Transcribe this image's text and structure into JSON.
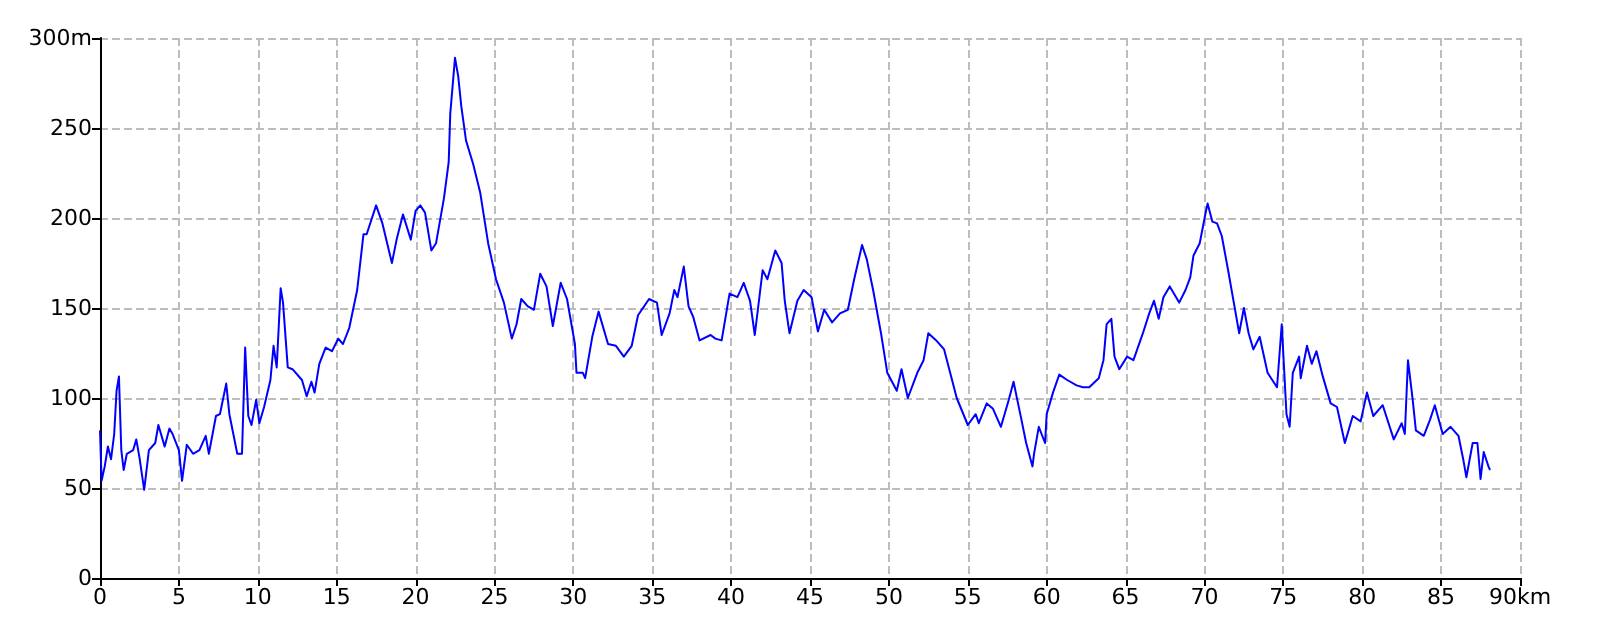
{
  "chart_data": {
    "type": "line",
    "xlim": [
      0,
      90
    ],
    "ylim": [
      0,
      300
    ],
    "xticks": [
      0,
      5,
      10,
      15,
      20,
      25,
      30,
      35,
      40,
      45,
      50,
      55,
      60,
      65,
      70,
      75,
      80,
      85,
      {
        "value": 90,
        "label": "90km"
      }
    ],
    "yticks": [
      0,
      50,
      100,
      150,
      200,
      250,
      {
        "value": 300,
        "label": "300m"
      }
    ],
    "grid": true,
    "marker": "none",
    "line_style": "solid",
    "series": [
      {
        "color": "#0000ff",
        "x": [
          0,
          0.1,
          0.3,
          0.5,
          0.7,
          0.9,
          1.05,
          1.2,
          1.35,
          1.5,
          1.7,
          2.1,
          2.3,
          2.5,
          2.8,
          3.1,
          3.5,
          3.7,
          4.1,
          4.4,
          4.6,
          5.0,
          5.2,
          5.5,
          5.9,
          6.3,
          6.7,
          6.9,
          7.35,
          7.6,
          8.0,
          8.2,
          8.7,
          9.0,
          9.2,
          9.4,
          9.6,
          9.9,
          10.1,
          10.4,
          10.8,
          11.0,
          11.2,
          11.45,
          11.6,
          11.9,
          12.2,
          12.8,
          13.1,
          13.4,
          13.6,
          13.9,
          14.3,
          14.7,
          15.1,
          15.4,
          15.8,
          16.3,
          16.7,
          16.9,
          17.5,
          17.9,
          18.5,
          18.8,
          19.2,
          19.7,
          20.0,
          20.3,
          20.6,
          21.0,
          21.3,
          21.8,
          22.1,
          22.2,
          22.5,
          22.7,
          22.9,
          23.2,
          23.65,
          24.1,
          24.6,
          25.1,
          25.6,
          26.1,
          26.4,
          26.7,
          27.1,
          27.5,
          27.9,
          28.3,
          28.7,
          29.2,
          29.6,
          30.1,
          30.2,
          30.6,
          30.75,
          31.2,
          31.6,
          32.2,
          32.7,
          33.2,
          33.7,
          34.1,
          34.8,
          35.3,
          35.6,
          36.1,
          36.4,
          36.6,
          37.0,
          37.3,
          37.6,
          38.0,
          38.7,
          39.0,
          39.4,
          39.9,
          40.4,
          40.8,
          41.2,
          41.5,
          42.0,
          42.3,
          42.8,
          43.2,
          43.4,
          43.7,
          44.2,
          44.6,
          45.1,
          45.5,
          45.9,
          46.4,
          46.9,
          47.4,
          47.8,
          48.3,
          48.6,
          49.0,
          49.5,
          49.9,
          50.5,
          50.8,
          51.2,
          51.8,
          52.2,
          52.5,
          53.0,
          53.5,
          54.3,
          55.0,
          55.5,
          55.7,
          56.2,
          56.6,
          57.1,
          57.6,
          57.9,
          58.4,
          58.7,
          59.1,
          59.2,
          59.5,
          59.9,
          60.0,
          60.4,
          60.8,
          61.3,
          61.9,
          62.3,
          62.7,
          63.3,
          63.6,
          63.8,
          64.1,
          64.3,
          64.6,
          65.1,
          65.5,
          66.1,
          66.5,
          66.8,
          67.1,
          67.4,
          67.8,
          68.4,
          68.8,
          69.1,
          69.3,
          69.7,
          70.1,
          70.2,
          70.5,
          70.8,
          71.1,
          71.5,
          71.9,
          72.2,
          72.5,
          72.8,
          73.1,
          73.5,
          74.0,
          74.6,
          74.9,
          75.2,
          75.4,
          75.6,
          76.0,
          76.1,
          76.5,
          76.8,
          77.1,
          77.5,
          78.0,
          78.4,
          78.9,
          79.4,
          79.9,
          80.3,
          80.7,
          81.3,
          82.0,
          82.5,
          82.7,
          82.9,
          83.2,
          83.4,
          83.9,
          84.3,
          84.6,
          85.1,
          85.6,
          86.1,
          86.4,
          86.6,
          87.0,
          87.3,
          87.5,
          87.7,
          88.0,
          88.1
        ],
        "values": [
          82,
          54,
          62,
          73,
          66,
          80,
          104,
          112,
          71,
          60,
          69,
          71,
          77,
          67,
          49,
          71,
          75,
          85,
          73,
          83,
          80,
          71,
          54,
          74,
          69,
          71,
          79,
          69,
          90,
          91,
          108,
          91,
          69,
          69,
          128,
          90,
          85,
          99,
          86,
          95,
          110,
          129,
          117,
          161,
          153,
          117,
          116,
          110,
          101,
          109,
          103,
          119,
          128,
          126,
          133,
          130,
          139,
          160,
          191,
          191,
          207,
          197,
          175,
          188,
          202,
          188,
          204,
          207,
          203,
          182,
          186,
          211,
          231,
          258,
          289,
          279,
          262,
          243,
          230,
          214,
          186,
          166,
          153,
          133,
          141,
          155,
          151,
          149,
          169,
          162,
          140,
          164,
          155,
          130,
          114,
          114,
          111,
          134,
          148,
          130,
          129,
          123,
          129,
          146,
          155,
          153,
          135,
          147,
          160,
          156,
          173,
          151,
          145,
          132,
          135,
          133,
          132,
          158,
          156,
          164,
          154,
          135,
          171,
          166,
          182,
          175,
          154,
          136,
          154,
          160,
          156,
          137,
          149,
          142,
          147,
          149,
          166,
          185,
          177,
          160,
          136,
          114,
          104,
          116,
          100,
          114,
          121,
          136,
          132,
          127,
          100,
          85,
          91,
          86,
          97,
          94,
          84,
          99,
          109,
          88,
          75,
          62,
          69,
          84,
          75,
          91,
          103,
          113,
          110,
          107,
          106,
          106,
          111,
          121,
          141,
          144,
          123,
          116,
          123,
          121,
          136,
          147,
          154,
          144,
          156,
          162,
          153,
          160,
          167,
          179,
          186,
          204,
          208,
          198,
          197,
          190,
          171,
          151,
          136,
          150,
          136,
          127,
          134,
          114,
          106,
          141,
          91,
          84,
          114,
          123,
          111,
          129,
          119,
          126,
          112,
          97,
          95,
          75,
          90,
          87,
          103,
          90,
          96,
          77,
          86,
          80,
          121,
          99,
          82,
          79,
          88,
          96,
          80,
          84,
          79,
          66,
          56,
          75,
          75,
          55,
          70,
          62,
          60
        ]
      }
    ]
  }
}
